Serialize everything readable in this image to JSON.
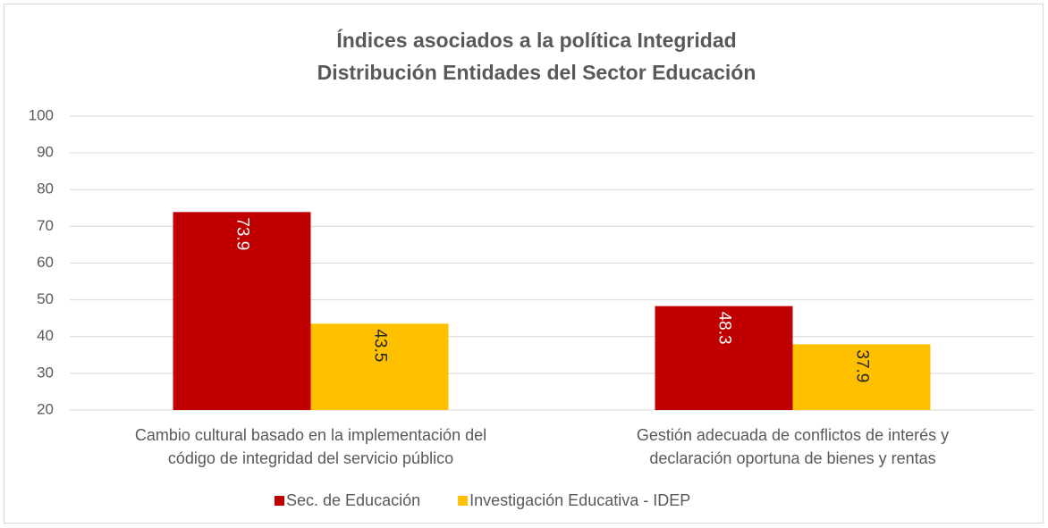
{
  "chart_data": {
    "type": "bar",
    "title": [
      "Índices asociados a la política Integridad",
      "Distribución Entidades del Sector Educación"
    ],
    "categories": [
      [
        "Cambio cultural basado en la implementación del",
        "código de integridad del servicio público"
      ],
      [
        "Gestión adecuada de conflictos de interés y",
        "declaración oportuna de bienes y rentas"
      ]
    ],
    "series": [
      {
        "name": "Sec. de Educación",
        "color": "#c00000",
        "label_color": "#ffffff",
        "values": [
          73.9,
          48.3
        ]
      },
      {
        "name": "Investigación Educativa - IDEP",
        "color": "#ffc000",
        "label_color": "#262626",
        "values": [
          43.5,
          37.9
        ]
      }
    ],
    "ylim": [
      20,
      100
    ],
    "yticks": [
      20,
      30,
      40,
      50,
      60,
      70,
      80,
      90,
      100
    ],
    "grid": true,
    "legend": "bottom"
  }
}
